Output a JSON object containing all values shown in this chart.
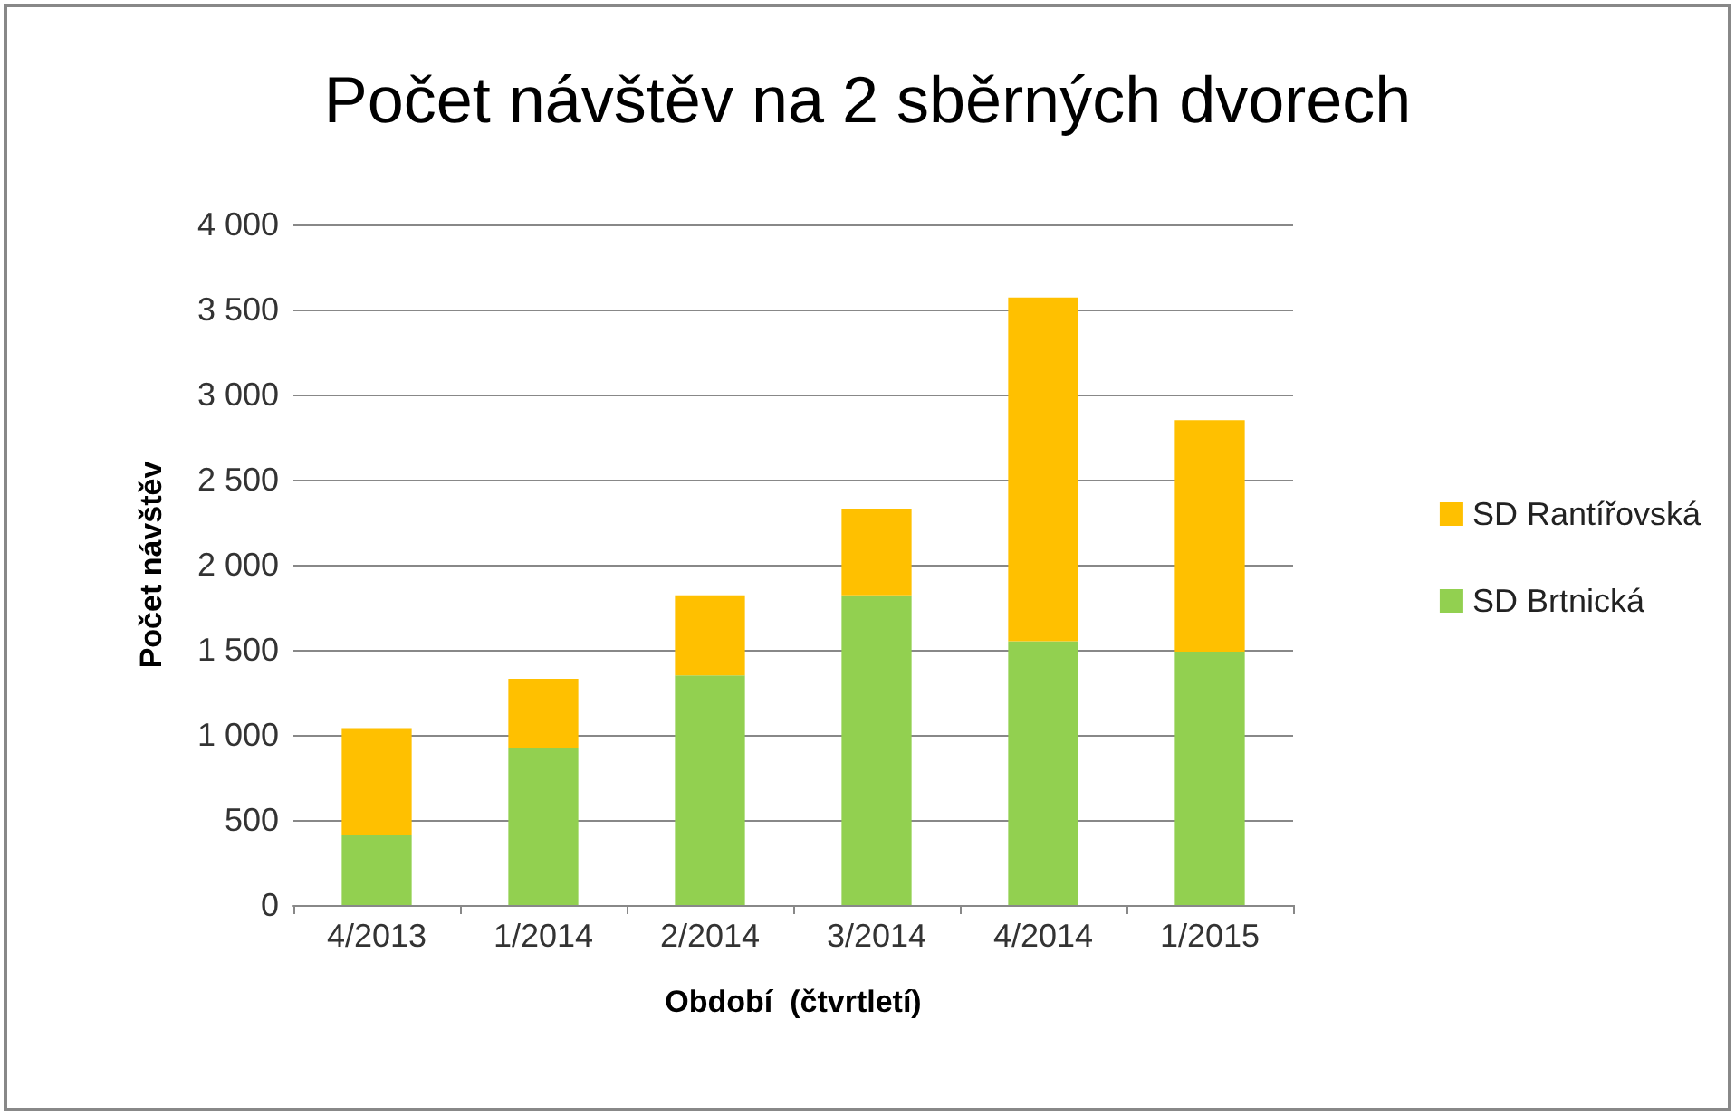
{
  "chart_data": {
    "type": "bar",
    "title": "Počet návštěv na 2 sběrných dvorech",
    "xlabel": "Období  (čtvrtletí)",
    "ylabel": "Počet návštěv",
    "categories": [
      "4/2013",
      "1/2014",
      "2/2014",
      "3/2014",
      "4/2014",
      "1/2015"
    ],
    "series": [
      {
        "name": "SD Brtnická",
        "color": "#92d050",
        "values": [
          410,
          920,
          1350,
          1820,
          1550,
          1490
        ]
      },
      {
        "name": "SD Rantířovská",
        "color": "#ffc000",
        "values": [
          630,
          410,
          470,
          510,
          2020,
          1360
        ]
      }
    ],
    "stacked": true,
    "ylim": [
      0,
      4000
    ],
    "yticks": [
      0,
      500,
      {
        "value": 1000,
        "label": "1 000"
      },
      {
        "value": 1500,
        "label": "1 500"
      },
      {
        "value": 2000,
        "label": "2 000"
      },
      {
        "value": 2500,
        "label": "2 500"
      },
      {
        "value": 3000,
        "label": "3 000"
      },
      {
        "value": 3500,
        "label": "3 500"
      },
      {
        "value": 4000,
        "label": "4 000"
      }
    ],
    "grid": "y",
    "legend": "right"
  }
}
